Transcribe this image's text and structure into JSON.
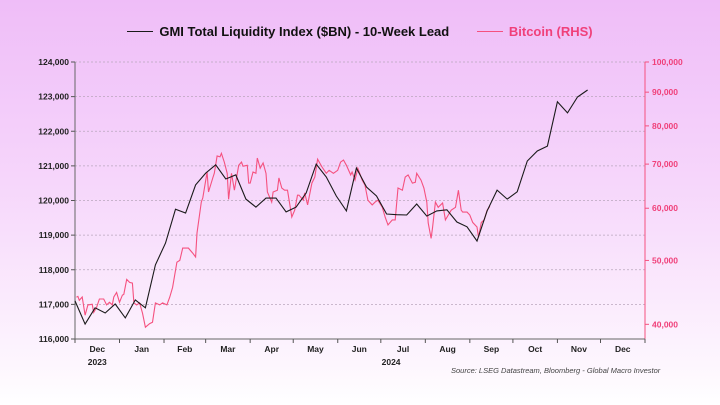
{
  "chart_data": {
    "type": "line",
    "legend_position": "top",
    "grid": true,
    "colors": {
      "liquidity": "#1a1a1a",
      "bitcoin": "#f5517f"
    },
    "series": [
      {
        "name": "GMI Total Liquidity Index ($BN) - 10-Week Lead",
        "axis": "left",
        "x": [
          "2023-12-01",
          "2023-12-08",
          "2023-12-15",
          "2023-12-22",
          "2023-12-29",
          "2024-01-05",
          "2024-01-12",
          "2024-01-19",
          "2024-01-26",
          "2024-02-02",
          "2024-02-09",
          "2024-02-16",
          "2024-02-23",
          "2024-03-01",
          "2024-03-08",
          "2024-03-15",
          "2024-03-22",
          "2024-03-29",
          "2024-04-05",
          "2024-04-12",
          "2024-04-19",
          "2024-04-26",
          "2024-05-03",
          "2024-05-10",
          "2024-05-17",
          "2024-05-24",
          "2024-05-31",
          "2024-06-07",
          "2024-06-14",
          "2024-06-21",
          "2024-06-28",
          "2024-07-05",
          "2024-07-12",
          "2024-07-19",
          "2024-07-26",
          "2024-08-02",
          "2024-08-09",
          "2024-08-16",
          "2024-08-23",
          "2024-08-30",
          "2024-09-06",
          "2024-09-13",
          "2024-09-20",
          "2024-09-27",
          "2024-10-04",
          "2024-10-11",
          "2024-10-18",
          "2024-10-25",
          "2024-11-01",
          "2024-11-08",
          "2024-11-15",
          "2024-11-22"
        ],
        "values": [
          117100,
          116430,
          116900,
          116750,
          117010,
          116610,
          117130,
          116900,
          118140,
          118770,
          119750,
          119640,
          120450,
          120790,
          121030,
          120620,
          120740,
          120040,
          119810,
          120070,
          120070,
          119670,
          119810,
          120220,
          121050,
          120680,
          120130,
          119700,
          120940,
          120390,
          120130,
          119610,
          119590,
          119580,
          119900,
          119550,
          119700,
          119730,
          119380,
          119240,
          118830,
          119700,
          120300,
          120040,
          120250,
          121140,
          121430,
          121570,
          122850,
          122530,
          122990,
          123190
        ]
      },
      {
        "name": "Bitcoin (RHS)",
        "axis": "right",
        "x": [
          "2023-12-02",
          "2023-12-03",
          "2023-12-04",
          "2023-12-06",
          "2023-12-08",
          "2023-12-10",
          "2023-12-13",
          "2023-12-14",
          "2023-12-16",
          "2023-12-18",
          "2023-12-21",
          "2023-12-23",
          "2023-12-25",
          "2023-12-27",
          "2023-12-28",
          "2023-12-30",
          "2024-01-01",
          "2024-01-03",
          "2024-01-04",
          "2024-01-06",
          "2024-01-08",
          "2024-01-10",
          "2024-01-11",
          "2024-01-13",
          "2024-01-15",
          "2024-01-17",
          "2024-01-19",
          "2024-01-22",
          "2024-01-24",
          "2024-01-26",
          "2024-01-29",
          "2024-01-31",
          "2024-02-03",
          "2024-02-05",
          "2024-02-07",
          "2024-02-10",
          "2024-02-12",
          "2024-02-14",
          "2024-02-18",
          "2024-02-21",
          "2024-02-23",
          "2024-02-24",
          "2024-02-27",
          "2024-02-28",
          "2024-03-02",
          "2024-03-03",
          "2024-03-06",
          "2024-03-07",
          "2024-03-09",
          "2024-03-11",
          "2024-03-12",
          "2024-03-14",
          "2024-03-16",
          "2024-03-17",
          "2024-03-19",
          "2024-03-21",
          "2024-03-24",
          "2024-03-26",
          "2024-03-27",
          "2024-03-30",
          "2024-03-31",
          "2024-04-01",
          "2024-04-03",
          "2024-04-05",
          "2024-04-06",
          "2024-04-08",
          "2024-04-10",
          "2024-04-12",
          "2024-04-13",
          "2024-04-16",
          "2024-04-17",
          "2024-04-20",
          "2024-04-21",
          "2024-04-23",
          "2024-04-25",
          "2024-04-27",
          "2024-04-30",
          "2024-05-02",
          "2024-05-04",
          "2024-05-05",
          "2024-05-08",
          "2024-05-09",
          "2024-05-11",
          "2024-05-14",
          "2024-05-16",
          "2024-05-18",
          "2024-05-21",
          "2024-05-24",
          "2024-05-26",
          "2024-05-29",
          "2024-06-01",
          "2024-06-03",
          "2024-06-05",
          "2024-06-07",
          "2024-06-10",
          "2024-06-11",
          "2024-06-13",
          "2024-06-15",
          "2024-06-18",
          "2024-06-20",
          "2024-06-22",
          "2024-06-25",
          "2024-06-27",
          "2024-06-29",
          "2024-07-02",
          "2024-07-04",
          "2024-07-06",
          "2024-07-09",
          "2024-07-11",
          "2024-07-13",
          "2024-07-16",
          "2024-07-18",
          "2024-07-20",
          "2024-07-23",
          "2024-07-25",
          "2024-07-26",
          "2024-07-29",
          "2024-07-31",
          "2024-08-02",
          "2024-08-03",
          "2024-08-05",
          "2024-08-06",
          "2024-08-08",
          "2024-08-10",
          "2024-08-13",
          "2024-08-15",
          "2024-08-17",
          "2024-08-19",
          "2024-08-22",
          "2024-08-24",
          "2024-08-26",
          "2024-08-27",
          "2024-08-30",
          "2024-09-01",
          "2024-09-03",
          "2024-09-06",
          "2024-09-07",
          "2024-09-09",
          "2024-09-11",
          "2024-09-13",
          "2024-09-15"
        ],
        "values": [
          43970,
          44100,
          43500,
          44000,
          41300,
          42800,
          42900,
          41700,
          42400,
          43700,
          43700,
          42800,
          43200,
          42800,
          44000,
          44700,
          43200,
          44300,
          44400,
          46800,
          46300,
          46200,
          43100,
          42800,
          43100,
          41600,
          39600,
          40100,
          40300,
          43100,
          42800,
          43100,
          42800,
          44000,
          45500,
          49700,
          50000,
          52200,
          52200,
          51300,
          50600,
          55000,
          61300,
          62200,
          68100,
          63500,
          66700,
          67800,
          72000,
          71800,
          72700,
          70500,
          67800,
          61900,
          67800,
          63900,
          69700,
          70500,
          69500,
          69700,
          65500,
          65500,
          68100,
          67800,
          71500,
          69000,
          70300,
          67800,
          63500,
          61300,
          63500,
          63900,
          66700,
          64400,
          63900,
          63900,
          58200,
          59600,
          62800,
          62800,
          61700,
          63300,
          60700,
          65500,
          66900,
          71200,
          69300,
          67800,
          68500,
          67800,
          68500,
          70500,
          71000,
          69700,
          67400,
          68100,
          66200,
          69000,
          66200,
          65000,
          61700,
          60700,
          61300,
          61700,
          60200,
          58200,
          56600,
          57600,
          57600,
          64400,
          63900,
          66900,
          67400,
          65500,
          65700,
          67800,
          66200,
          64400,
          61300,
          57000,
          54000,
          56000,
          61300,
          60200,
          61100,
          57600,
          58600,
          59600,
          60200,
          63900,
          59600,
          59200,
          59200,
          58600,
          57100,
          56200,
          54200,
          57100,
          57600,
          59600,
          60400
        ]
      }
    ],
    "left_axis": {
      "range": [
        116000,
        124000
      ],
      "ticks": [
        "116,000",
        "117,000",
        "118,000",
        "119,000",
        "120,000",
        "121,000",
        "122,000",
        "123,000",
        "124,000"
      ]
    },
    "right_axis": {
      "scale": "log",
      "range": [
        38000,
        100000
      ],
      "tick_values": [
        40000,
        50000,
        60000,
        70000,
        80000,
        90000,
        100000
      ],
      "ticks": [
        "40,000",
        "50,000",
        "60,000",
        "70,000",
        "80,000",
        "90,000",
        "100,000"
      ]
    },
    "x_axis": {
      "range": [
        "2023-12-01",
        "2025-01-01"
      ],
      "month_labels": [
        "Dec",
        "Jan",
        "Feb",
        "Mar",
        "Apr",
        "May",
        "Jun",
        "Jul",
        "Aug",
        "Sep",
        "Oct",
        "Nov",
        "Dec"
      ],
      "year_labels": [
        "2023",
        "2024"
      ]
    },
    "source": "Source: LSEG Datastream, Bloomberg - Global Macro Investor"
  }
}
